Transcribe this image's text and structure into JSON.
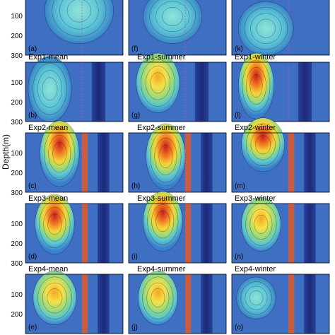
{
  "chart_data": {
    "type": "heatmap",
    "ylabel": "Depth(m)",
    "y_ticks": [
      "100",
      "200",
      "300"
    ],
    "rows": [
      {
        "panels": [
          {
            "label": "(a)",
            "title": ""
          },
          {
            "label": "(f)",
            "title": ""
          },
          {
            "label": "(k)",
            "title": ""
          }
        ]
      },
      {
        "panels": [
          {
            "label": "(b)",
            "title": "Exp1-mean"
          },
          {
            "label": "(g)",
            "title": "Exp1-summer"
          },
          {
            "label": "(l)",
            "title": "Exp1-winter"
          }
        ]
      },
      {
        "panels": [
          {
            "label": "(c)",
            "title": "Exp2-mean"
          },
          {
            "label": "(h)",
            "title": "Exp2-summer"
          },
          {
            "label": "(m)",
            "title": "Exp2-winter"
          }
        ]
      },
      {
        "panels": [
          {
            "label": "(d)",
            "title": "Exp3-mean"
          },
          {
            "label": "(i)",
            "title": "Exp3-summer"
          },
          {
            "label": "(n)",
            "title": "Exp3-winter"
          }
        ]
      },
      {
        "panels": [
          {
            "label": "(e)",
            "title": "Exp4-mean"
          },
          {
            "label": "(j)",
            "title": "Exp4-summer"
          },
          {
            "label": "(o)",
            "title": "Exp4-winter"
          }
        ]
      }
    ]
  }
}
